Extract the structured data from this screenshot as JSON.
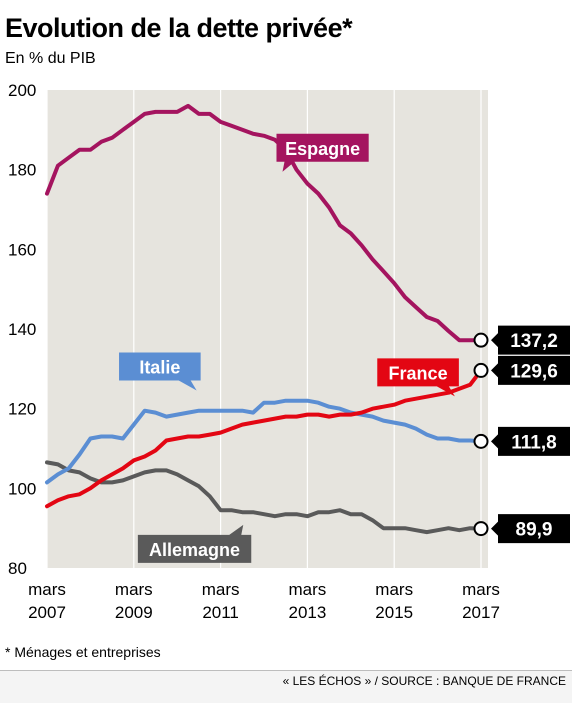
{
  "header": {
    "title": "Evolution de la dette privée*",
    "subtitle": "En % du PIB"
  },
  "footer": {
    "footnote": "* Ménages et entreprises",
    "source": "« LES ÉCHOS » / SOURCE : BANQUE DE FRANCE"
  },
  "colors": {
    "espagne": "#a4145f",
    "france": "#e30613",
    "italie": "#5b8ed3",
    "allemagne": "#5a5a5a",
    "plot_background": "#e6e4de",
    "gridline": "#ffffff"
  },
  "chart_data": {
    "type": "line",
    "title": "Evolution de la dette privée*",
    "subtitle": "En % du PIB",
    "x_unit": "year",
    "xlim": [
      2007.0,
      2017.25
    ],
    "ylim": [
      80,
      200
    ],
    "y_ticks": [
      80,
      100,
      120,
      140,
      160,
      180,
      200
    ],
    "x_ticks": [
      {
        "value": 2007,
        "label_top": "mars",
        "label_bottom": "2007"
      },
      {
        "value": 2009,
        "label_top": "mars",
        "label_bottom": "2009"
      },
      {
        "value": 2011,
        "label_top": "mars",
        "label_bottom": "2011"
      },
      {
        "value": 2013,
        "label_top": "mars",
        "label_bottom": "2013"
      },
      {
        "value": 2015,
        "label_top": "mars",
        "label_bottom": "2015"
      },
      {
        "value": 2017,
        "label_top": "mars",
        "label_bottom": "2017"
      }
    ],
    "grid": "vertical",
    "series": [
      {
        "name": "Espagne",
        "color": "#a4145f",
        "end_value": "137,2",
        "x": [
          2007.0,
          2007.25,
          2007.5,
          2007.75,
          2008.0,
          2008.25,
          2008.5,
          2008.75,
          2009.0,
          2009.25,
          2009.5,
          2009.75,
          2010.0,
          2010.25,
          2010.5,
          2010.75,
          2011.0,
          2011.25,
          2011.5,
          2011.75,
          2012.0,
          2012.25,
          2012.5,
          2012.75,
          2013.0,
          2013.25,
          2013.5,
          2013.75,
          2014.0,
          2014.25,
          2014.5,
          2014.75,
          2015.0,
          2015.25,
          2015.5,
          2015.75,
          2016.0,
          2016.25,
          2016.5,
          2016.75,
          2017.0
        ],
        "y": [
          174,
          181,
          183,
          185,
          185,
          187,
          188,
          190,
          192,
          194,
          194.5,
          194.5,
          194.5,
          196,
          194,
          194,
          192,
          191,
          190,
          189,
          188.5,
          187.5,
          185,
          180,
          176.5,
          174,
          170.5,
          166,
          164,
          161,
          157.5,
          154.5,
          151.5,
          148,
          145.5,
          143,
          142,
          139.5,
          137.2,
          137.2,
          137.2
        ]
      },
      {
        "name": "France",
        "color": "#e30613",
        "end_value": "129,6",
        "x": [
          2007.0,
          2007.25,
          2007.5,
          2007.75,
          2008.0,
          2008.25,
          2008.5,
          2008.75,
          2009.0,
          2009.25,
          2009.5,
          2009.75,
          2010.0,
          2010.25,
          2010.5,
          2010.75,
          2011.0,
          2011.25,
          2011.5,
          2011.75,
          2012.0,
          2012.25,
          2012.5,
          2012.75,
          2013.0,
          2013.25,
          2013.5,
          2013.75,
          2014.0,
          2014.25,
          2014.5,
          2014.75,
          2015.0,
          2015.25,
          2015.5,
          2015.75,
          2016.0,
          2016.25,
          2016.5,
          2016.75,
          2017.0
        ],
        "y": [
          95.5,
          97,
          98,
          98.5,
          100,
          102,
          103.5,
          105,
          107,
          108,
          109.5,
          112,
          112.5,
          113,
          113,
          113.5,
          114,
          115,
          116,
          116.5,
          117,
          117.5,
          118,
          118,
          118.5,
          118.5,
          118,
          118.5,
          118.5,
          119,
          120,
          120.5,
          121,
          122,
          122.5,
          123,
          123.5,
          124,
          125,
          126,
          129.6
        ]
      },
      {
        "name": "Italie",
        "color": "#5b8ed3",
        "end_value": "111,8",
        "x": [
          2007.0,
          2007.25,
          2007.5,
          2007.75,
          2008.0,
          2008.25,
          2008.5,
          2008.75,
          2009.0,
          2009.25,
          2009.5,
          2009.75,
          2010.0,
          2010.25,
          2010.5,
          2010.75,
          2011.0,
          2011.25,
          2011.5,
          2011.75,
          2012.0,
          2012.25,
          2012.5,
          2012.75,
          2013.0,
          2013.25,
          2013.5,
          2013.75,
          2014.0,
          2014.25,
          2014.5,
          2014.75,
          2015.0,
          2015.25,
          2015.5,
          2015.75,
          2016.0,
          2016.25,
          2016.5,
          2016.75,
          2017.0
        ],
        "y": [
          101.5,
          103.5,
          105,
          108.5,
          112.5,
          113,
          113,
          112.5,
          116,
          119.5,
          119,
          118,
          118.5,
          119,
          119.5,
          119.5,
          119.5,
          119.5,
          119.5,
          119,
          121.5,
          121.5,
          122,
          122,
          122,
          121.5,
          120.5,
          120,
          119,
          118.5,
          118,
          117,
          116.5,
          116,
          115,
          113.5,
          112.5,
          112.5,
          112,
          112,
          111.8
        ]
      },
      {
        "name": "Allemagne",
        "color": "#5a5a5a",
        "end_value": "89,9",
        "x": [
          2007.0,
          2007.25,
          2007.5,
          2007.75,
          2008.0,
          2008.25,
          2008.5,
          2008.75,
          2009.0,
          2009.25,
          2009.5,
          2009.75,
          2010.0,
          2010.25,
          2010.5,
          2010.75,
          2011.0,
          2011.25,
          2011.5,
          2011.75,
          2012.0,
          2012.25,
          2012.5,
          2012.75,
          2013.0,
          2013.25,
          2013.5,
          2013.75,
          2014.0,
          2014.25,
          2014.5,
          2014.75,
          2015.0,
          2015.25,
          2015.5,
          2015.75,
          2016.0,
          2016.25,
          2016.5,
          2016.75,
          2017.0
        ],
        "y": [
          106.5,
          106,
          104.5,
          104,
          102.5,
          101.5,
          101.5,
          102,
          103,
          104,
          104.5,
          104.5,
          103.5,
          102,
          100.5,
          98,
          94.5,
          94.5,
          94,
          94,
          93.5,
          93,
          93.5,
          93.5,
          93,
          94,
          94,
          94.5,
          93.5,
          93.5,
          92,
          90,
          90,
          90,
          89.5,
          89,
          89.5,
          90,
          89.5,
          90,
          89.9
        ]
      }
    ],
    "labels": [
      {
        "series": "Espagne",
        "text": "Espagne",
        "value_x": 2013.35,
        "value_y": 185.5
      },
      {
        "series": "France",
        "text": "France",
        "value_x": 2015.55,
        "value_y": 129.1
      },
      {
        "series": "Italie",
        "text": "Italie",
        "value_x": 2009.6,
        "value_y": 130.6
      },
      {
        "series": "Allemagne",
        "text": "Allemagne",
        "value_x": 2010.4,
        "value_y": 84.8
      }
    ]
  }
}
